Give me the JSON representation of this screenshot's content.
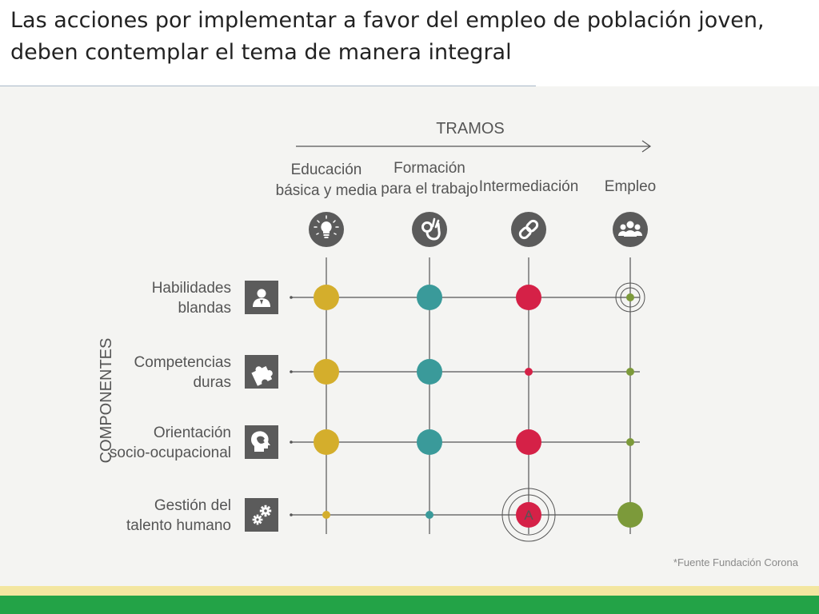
{
  "title": "Las acciones por implementar a favor del empleo de población joven, deben contemplar el tema de manera integral",
  "source": "*Fuente Fundación Corona",
  "diagram": {
    "tramos_label": "TRAMOS",
    "componentes_label": "COMPONENTES",
    "columns": [
      {
        "label_lines": [
          "Educación",
          "básica y media"
        ],
        "icon": "lightbulb-icon",
        "color": "#d4ae2c"
      },
      {
        "label_lines": [
          "Formación",
          "para el trabajo"
        ],
        "icon": "ok-hand-icon",
        "color": "#3a9a9a"
      },
      {
        "label_lines": [
          "Intermediación"
        ],
        "icon": "chain-link-icon",
        "color": "#d52147"
      },
      {
        "label_lines": [
          "Empleo"
        ],
        "icon": "people-group-icon",
        "color": "#7c9a3a"
      }
    ],
    "rows": [
      {
        "label_lines": [
          "Habilidades",
          "blandas"
        ],
        "icon": "person-icon",
        "nodes": [
          "large",
          "large",
          "large",
          "target-small"
        ]
      },
      {
        "label_lines": [
          "Competencias",
          "duras"
        ],
        "icon": "puzzle-icon",
        "nodes": [
          "large",
          "large",
          "small",
          "small"
        ]
      },
      {
        "label_lines": [
          "Orientación",
          "socio-ocupacional"
        ],
        "icon": "head-icon",
        "nodes": [
          "large",
          "large",
          "large",
          "small"
        ]
      },
      {
        "label_lines": [
          "Gestión del",
          "talento humano"
        ],
        "icon": "gears-icon",
        "nodes": [
          "small",
          "small",
          "target-large",
          "large"
        ]
      }
    ],
    "node_badge": "A",
    "colors": {
      "line": "#555555",
      "icon_bg": "#5b5b5b",
      "text": "#555555"
    }
  }
}
